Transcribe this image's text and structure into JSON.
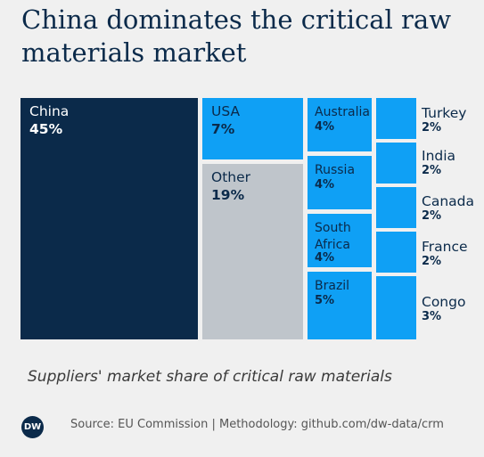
{
  "title": "China dominates the critical raw materials market",
  "subtitle": "Suppliers' market share of critical raw materials",
  "source": "Source: EU Commission | Methodology: github.com/dw-data/crm",
  "logo_text": "DW",
  "colors": {
    "china": "#0b2a4a",
    "other": "#bfc5cb",
    "suppliers": "#0fa0f5",
    "background": "#f0f0f0"
  },
  "chart_data": {
    "type": "treemap",
    "series": [
      {
        "name": "China",
        "value": 45,
        "label": "45%"
      },
      {
        "name": "USA",
        "value": 7,
        "label": "7%"
      },
      {
        "name": "Other",
        "value": 19,
        "label": "19%"
      },
      {
        "name": "Australia",
        "value": 4,
        "label": "4%"
      },
      {
        "name": "Russia",
        "value": 4,
        "label": "4%"
      },
      {
        "name": "South Africa",
        "value": 4,
        "label": "4%"
      },
      {
        "name": "Brazil",
        "value": 5,
        "label": "5%"
      },
      {
        "name": "Turkey",
        "value": 2,
        "label": "2%"
      },
      {
        "name": "India",
        "value": 2,
        "label": "2%"
      },
      {
        "name": "Canada",
        "value": 2,
        "label": "2%"
      },
      {
        "name": "France",
        "value": 2,
        "label": "2%"
      },
      {
        "name": "Congo",
        "value": 3,
        "label": "3%"
      }
    ]
  }
}
